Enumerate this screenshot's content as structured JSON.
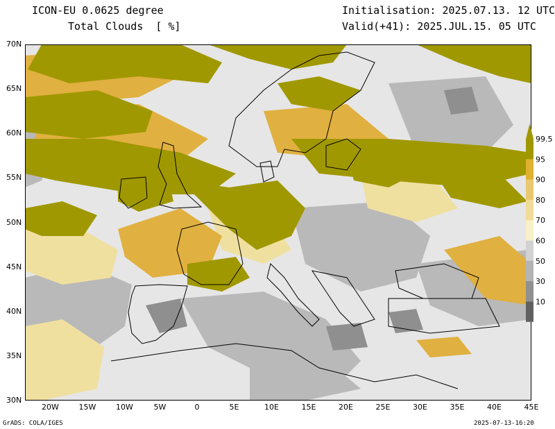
{
  "header": {
    "title_line1": "ICON-EU 0.0625 degree",
    "title_line2": "Total Clouds  [ %]",
    "init_line": "Initialisation: 2025.07.13. 12 UTC",
    "valid_line": "Valid(+41): 2025.JUL.15. 05 UTC"
  },
  "map": {
    "lat_labels": [
      "70N",
      "65N",
      "60N",
      "55N",
      "50N",
      "45N",
      "40N",
      "35N",
      "30N"
    ],
    "lon_labels": [
      "20W",
      "15W",
      "10W",
      "5W",
      "0",
      "5E",
      "10E",
      "15E",
      "20E",
      "25E",
      "30E",
      "35E",
      "40E",
      "45E"
    ],
    "colors": {
      "sea_clear": "#e6e6e6",
      "overcast": "#a09800",
      "high_cloud": "#e0b040",
      "mid_cloud": "#f0e0a0",
      "low_cloud": "#b4b4b4",
      "coast": "#000000"
    }
  },
  "legend": {
    "levels": [
      "99.5",
      "95",
      "90",
      "80",
      "70",
      "60",
      "50",
      "30",
      "10"
    ],
    "colors": [
      "#a09800",
      "#e0b030",
      "#e8c870",
      "#f0dc98",
      "#f8f0c8",
      "#d2d2d2",
      "#b4b4b4",
      "#909090",
      "#606060"
    ]
  },
  "footer": {
    "left": "GrADS: COLA/IGES",
    "right": "2025-07-13-16:20"
  }
}
